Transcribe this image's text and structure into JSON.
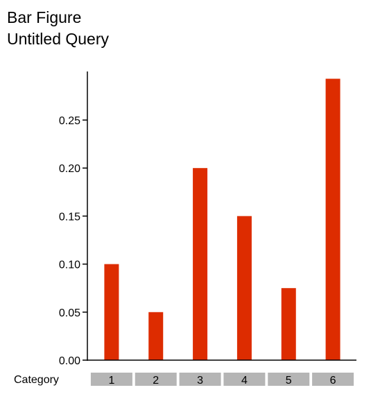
{
  "header": {
    "title": "Bar Figure",
    "subtitle": "Untitled Query"
  },
  "chart_data": {
    "type": "bar",
    "title": "Bar Figure",
    "subtitle": "Untitled Query",
    "xlabel": "Category",
    "ylabel": "",
    "categories": [
      "1",
      "2",
      "3",
      "4",
      "5",
      "6"
    ],
    "values": [
      0.1,
      0.05,
      0.2,
      0.15,
      0.075,
      0.293
    ],
    "ylim": [
      0,
      0.3
    ],
    "yticks": [
      "0.00",
      "0.05",
      "0.10",
      "0.15",
      "0.20",
      "0.25"
    ],
    "grid": false,
    "legend": "none",
    "colors": {
      "bar": "#dd2c00",
      "category_box": "#b5b5b5"
    }
  }
}
